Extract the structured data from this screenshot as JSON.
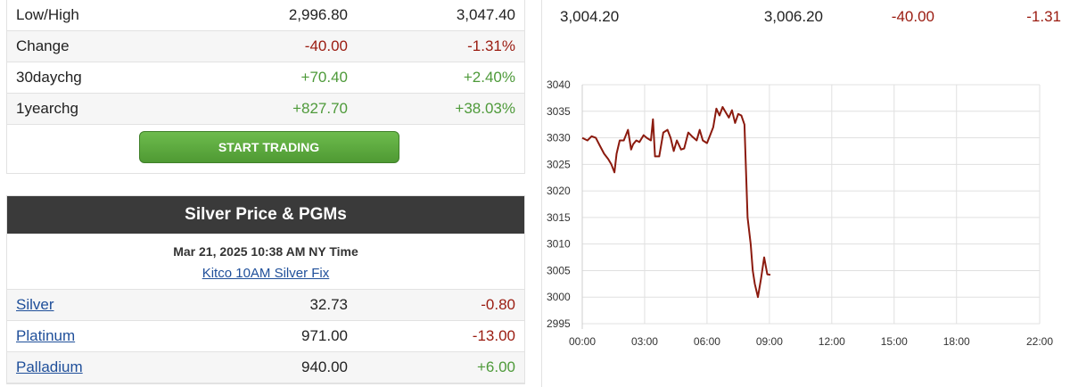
{
  "gold_table": {
    "rows": [
      {
        "label": "Low/High",
        "v1": "2,996.80",
        "v2": "3,047.40",
        "v1_class": "",
        "v2_class": ""
      },
      {
        "label": "Change",
        "v1": "-40.00",
        "v2": "-1.31%",
        "v1_class": "neg",
        "v2_class": "neg"
      },
      {
        "label": "30daychg",
        "v1": "+70.40",
        "v2": "+2.40%",
        "v1_class": "pos",
        "v2_class": "pos"
      },
      {
        "label": "1yearchg",
        "v1": "+827.70",
        "v2": "+38.03%",
        "v1_class": "pos",
        "v2_class": "pos"
      }
    ],
    "trade_button": "START TRADING"
  },
  "silver": {
    "title": "Silver Price & PGMs",
    "time": "Mar 21, 2025 10:38 AM NY Time",
    "fix_link": "Kitco 10AM Silver Fix",
    "rows": [
      {
        "label": "Silver",
        "price": "32.73",
        "change": "-0.80",
        "change_class": "neg"
      },
      {
        "label": "Platinum",
        "price": "971.00",
        "change": "-13.00",
        "change_class": "neg"
      },
      {
        "label": "Palladium",
        "price": "940.00",
        "change": "+6.00",
        "change_class": "pos"
      }
    ]
  },
  "quote": {
    "bid": "3,004.20",
    "ask": "3,006.20",
    "change": "-40.00",
    "change_pct": "-1.31"
  },
  "colors": {
    "negative": "#9a1b10",
    "positive": "#4e9a3a",
    "header_bg": "#3a3a3a",
    "line": "#8b1a0e"
  },
  "chart_data": {
    "type": "line",
    "xlabel": "",
    "ylabel": "",
    "ylim": [
      2995,
      3040
    ],
    "y_ticks": [
      2995,
      3000,
      3005,
      3010,
      3015,
      3020,
      3025,
      3030,
      3035,
      3040
    ],
    "x_ticks": [
      "00:00",
      "03:00",
      "06:00",
      "09:00",
      "12:00",
      "15:00",
      "18:00",
      "22:00"
    ],
    "x_tick_hours": [
      0,
      3,
      6,
      9,
      12,
      15,
      18,
      22
    ],
    "xlim_hours": [
      0,
      22
    ],
    "grid": true,
    "series": [
      {
        "x": [
          0,
          0.25,
          0.45,
          0.65,
          0.85,
          1.05,
          1.25,
          1.4,
          1.55,
          1.65,
          1.8,
          2.0,
          2.2,
          2.35,
          2.45,
          2.6,
          2.75,
          2.95,
          3.1,
          3.3,
          3.4,
          3.5,
          3.7,
          3.9,
          4.1,
          4.25,
          4.4,
          4.55,
          4.75,
          4.9,
          5.1,
          5.3,
          5.5,
          5.65,
          5.8,
          6.0,
          6.15,
          6.3,
          6.45,
          6.6,
          6.75,
          6.9,
          7.05,
          7.2,
          7.35,
          7.5,
          7.65,
          7.8,
          7.95,
          8.1,
          8.2,
          8.3,
          8.45,
          8.6,
          8.75,
          8.9,
          9.05
        ],
        "y": [
          3030,
          3029.5,
          3030.3,
          3030,
          3028.5,
          3027,
          3026,
          3025,
          3023.5,
          3027,
          3029.5,
          3029.5,
          3031.5,
          3027.8,
          3028.8,
          3029.5,
          3029.2,
          3030.5,
          3030,
          3029.5,
          3033.5,
          3026.5,
          3026.5,
          3031,
          3031.5,
          3030,
          3027.5,
          3029.5,
          3027.8,
          3028,
          3031,
          3030.2,
          3029.5,
          3031.5,
          3029.5,
          3029,
          3030.5,
          3032,
          3035.5,
          3034.2,
          3035.8,
          3034.8,
          3033.8,
          3035.2,
          3032.8,
          3034.5,
          3034.2,
          3032.5,
          3015,
          3010,
          3005,
          3002.5,
          3000,
          3003.5,
          3007.5,
          3004.3,
          3004.2
        ]
      }
    ]
  }
}
